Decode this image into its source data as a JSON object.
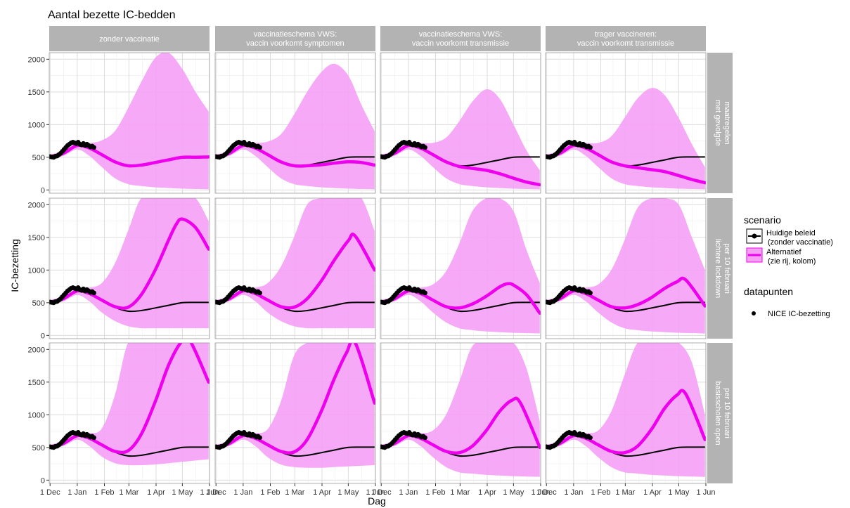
{
  "chart_data": {
    "type": "line",
    "title": "Aantal bezette IC-bedden",
    "xlabel": "Dag",
    "ylabel": "IC-bezetting",
    "x_ticks": [
      "1 Dec",
      "1 Jan",
      "1 Feb",
      "1 Mar",
      "1 Apr",
      "1 May",
      "1 Jun"
    ],
    "y_ticks": [
      "0",
      "500",
      "1000",
      "1500",
      "2000"
    ],
    "ylim": [
      0,
      2100
    ],
    "grid": true,
    "columns": [
      "zonder vaccinatie",
      "vaccinatieschema VWS:\nvaccin voorkomt symptomen",
      "vaccinatieschema VWS:\nvaccin voorkomt transmissie",
      "trager vaccineren:\nvaccin voorkomt transmissie"
    ],
    "rows": [
      "met gevolgde\nmaatregelen",
      "lichtere lockdown\nper 10 februari",
      "basisscholen open\nper 10 februari"
    ],
    "legend": {
      "scenario_title": "scenario",
      "scenario_items": [
        {
          "line1": "Huidige beleid",
          "line2": "(zonder vaccinatie)",
          "color": "#000000"
        },
        {
          "line1": "Alternatief",
          "line2": "(zie rij, kolom)",
          "color": "#ee00ee"
        }
      ],
      "points_title": "datapunten",
      "points_item": "NICE IC-bezetting",
      "placement": "right"
    },
    "colors": {
      "baseline": "#000000",
      "alternative": "#ee00ee",
      "band": "#f5a0f5",
      "strip": "#b3b3b3"
    },
    "baseline_x": [
      1,
      16,
      32,
      46,
      60,
      75,
      90,
      105,
      121,
      136,
      152,
      167,
      182
    ],
    "baseline_y": [
      510,
      560,
      680,
      640,
      540,
      430,
      370,
      380,
      420,
      460,
      500,
      505,
      505
    ],
    "observed": {
      "x": [
        1,
        3,
        5,
        7,
        9,
        11,
        13,
        15,
        17,
        19,
        21,
        23,
        25,
        27,
        29,
        31,
        33,
        35,
        37,
        39,
        41,
        43,
        45,
        47,
        49,
        51
      ],
      "y": [
        510,
        505,
        500,
        515,
        520,
        540,
        560,
        590,
        620,
        650,
        680,
        700,
        720,
        730,
        720,
        710,
        730,
        700,
        690,
        710,
        680,
        700,
        680,
        660,
        670,
        650
      ]
    },
    "panels": [
      {
        "row": 0,
        "col": 0,
        "alt_x": [
          1,
          16,
          32,
          46,
          60,
          75,
          90,
          105,
          121,
          136,
          152,
          167,
          182
        ],
        "alt_y": [
          510,
          560,
          680,
          640,
          540,
          430,
          370,
          380,
          420,
          460,
          500,
          500,
          505
        ],
        "band_x": [
          1,
          16,
          32,
          46,
          60,
          75,
          90,
          105,
          121,
          136,
          152,
          167,
          182
        ],
        "band_lo": [
          480,
          520,
          620,
          520,
          350,
          180,
          90,
          60,
          40,
          30,
          20,
          15,
          10
        ],
        "band_hi": [
          540,
          600,
          720,
          720,
          760,
          900,
          1250,
          1650,
          2020,
          2100,
          1850,
          1500,
          1200
        ]
      },
      {
        "row": 0,
        "col": 1,
        "alt_x": [
          1,
          16,
          32,
          46,
          60,
          75,
          90,
          105,
          121,
          136,
          152,
          167,
          182
        ],
        "alt_y": [
          510,
          560,
          680,
          640,
          540,
          430,
          370,
          370,
          385,
          410,
          430,
          420,
          380
        ],
        "band_x": [
          1,
          16,
          32,
          46,
          60,
          75,
          90,
          105,
          121,
          136,
          152,
          167,
          182
        ],
        "band_lo": [
          480,
          520,
          620,
          520,
          350,
          180,
          90,
          60,
          40,
          30,
          20,
          15,
          10
        ],
        "band_hi": [
          540,
          600,
          720,
          720,
          740,
          850,
          1150,
          1500,
          1800,
          1930,
          1750,
          1300,
          900
        ]
      },
      {
        "row": 0,
        "col": 2,
        "alt_x": [
          1,
          16,
          32,
          46,
          60,
          75,
          90,
          105,
          121,
          136,
          152,
          167,
          182
        ],
        "alt_y": [
          510,
          560,
          680,
          640,
          540,
          430,
          360,
          330,
          300,
          250,
          180,
          120,
          80
        ],
        "band_x": [
          1,
          16,
          32,
          46,
          60,
          75,
          90,
          105,
          121,
          136,
          152,
          167,
          182
        ],
        "band_lo": [
          480,
          520,
          620,
          520,
          350,
          180,
          90,
          60,
          40,
          30,
          20,
          15,
          10
        ],
        "band_hi": [
          540,
          600,
          720,
          720,
          720,
          800,
          1050,
          1350,
          1540,
          1400,
          1000,
          600,
          300
        ]
      },
      {
        "row": 0,
        "col": 3,
        "alt_x": [
          1,
          16,
          32,
          46,
          60,
          75,
          90,
          105,
          121,
          136,
          152,
          167,
          182
        ],
        "alt_y": [
          510,
          560,
          680,
          640,
          540,
          430,
          370,
          340,
          310,
          280,
          220,
          160,
          110
        ],
        "band_x": [
          1,
          16,
          32,
          46,
          60,
          75,
          90,
          105,
          121,
          136,
          152,
          167,
          182
        ],
        "band_lo": [
          480,
          520,
          620,
          520,
          350,
          180,
          90,
          60,
          40,
          30,
          20,
          15,
          10
        ],
        "band_hi": [
          540,
          600,
          720,
          720,
          720,
          820,
          1100,
          1400,
          1560,
          1450,
          1100,
          700,
          350
        ]
      },
      {
        "row": 1,
        "col": 0,
        "alt_x": [
          1,
          16,
          32,
          46,
          60,
          75,
          90,
          105,
          121,
          136,
          145,
          152,
          167,
          182
        ],
        "alt_y": [
          510,
          560,
          680,
          640,
          540,
          440,
          430,
          620,
          1000,
          1450,
          1700,
          1780,
          1650,
          1320
        ],
        "band_x": [
          1,
          16,
          32,
          46,
          60,
          75,
          90,
          105,
          121,
          136,
          152,
          167,
          182
        ],
        "band_lo": [
          480,
          520,
          620,
          520,
          350,
          220,
          140,
          110,
          110,
          110,
          110,
          110,
          110
        ],
        "band_hi": [
          540,
          600,
          720,
          730,
          800,
          1100,
          1600,
          2100,
          2100,
          2100,
          2100,
          2100,
          1750
        ]
      },
      {
        "row": 1,
        "col": 1,
        "alt_x": [
          1,
          16,
          32,
          46,
          60,
          75,
          90,
          105,
          121,
          136,
          152,
          160,
          182
        ],
        "alt_y": [
          510,
          560,
          680,
          640,
          540,
          440,
          430,
          560,
          830,
          1150,
          1450,
          1520,
          1000
        ],
        "band_x": [
          1,
          16,
          32,
          46,
          60,
          75,
          90,
          105,
          121,
          136,
          152,
          167,
          182
        ],
        "band_lo": [
          480,
          520,
          620,
          520,
          350,
          220,
          140,
          110,
          110,
          110,
          110,
          110,
          110
        ],
        "band_hi": [
          540,
          600,
          720,
          730,
          800,
          1050,
          1500,
          2000,
          2100,
          2100,
          2100,
          2100,
          1600
        ]
      },
      {
        "row": 1,
        "col": 2,
        "alt_x": [
          1,
          16,
          32,
          46,
          60,
          75,
          90,
          105,
          121,
          136,
          145,
          152,
          167,
          182
        ],
        "alt_y": [
          510,
          560,
          680,
          640,
          540,
          440,
          420,
          480,
          600,
          740,
          790,
          770,
          620,
          340
        ],
        "band_x": [
          1,
          16,
          32,
          46,
          60,
          75,
          90,
          105,
          121,
          136,
          152,
          167,
          182
        ],
        "band_lo": [
          480,
          520,
          620,
          520,
          350,
          200,
          110,
          80,
          60,
          50,
          40,
          35,
          30
        ],
        "band_hi": [
          540,
          600,
          720,
          730,
          780,
          980,
          1400,
          1900,
          2100,
          2100,
          1900,
          1300,
          800
        ]
      },
      {
        "row": 1,
        "col": 3,
        "alt_x": [
          1,
          16,
          32,
          46,
          60,
          75,
          90,
          105,
          121,
          136,
          150,
          160,
          182
        ],
        "alt_y": [
          510,
          560,
          680,
          640,
          540,
          440,
          420,
          470,
          580,
          720,
          820,
          850,
          450
        ],
        "band_x": [
          1,
          16,
          32,
          46,
          60,
          75,
          90,
          105,
          121,
          136,
          152,
          167,
          182
        ],
        "band_lo": [
          480,
          520,
          620,
          520,
          350,
          200,
          110,
          80,
          60,
          50,
          40,
          35,
          30
        ],
        "band_hi": [
          540,
          600,
          720,
          730,
          780,
          1000,
          1450,
          1950,
          2100,
          2100,
          2000,
          1500,
          1000
        ]
      },
      {
        "row": 2,
        "col": 0,
        "alt_x": [
          1,
          16,
          32,
          46,
          60,
          75,
          90,
          105,
          121,
          136,
          150,
          160,
          182
        ],
        "alt_y": [
          510,
          560,
          680,
          640,
          540,
          440,
          450,
          700,
          1200,
          1750,
          2100,
          2150,
          1500
        ],
        "band_x": [
          1,
          16,
          32,
          46,
          60,
          75,
          90,
          105,
          121,
          136,
          152,
          167,
          182
        ],
        "band_lo": [
          480,
          520,
          620,
          520,
          360,
          260,
          230,
          230,
          240,
          260,
          280,
          300,
          320
        ],
        "band_hi": [
          540,
          600,
          720,
          720,
          790,
          1300,
          2100,
          2100,
          2100,
          2100,
          2100,
          2100,
          2100
        ]
      },
      {
        "row": 2,
        "col": 1,
        "alt_x": [
          1,
          16,
          32,
          46,
          60,
          75,
          90,
          105,
          121,
          136,
          150,
          160,
          182
        ],
        "alt_y": [
          510,
          560,
          680,
          640,
          540,
          440,
          430,
          620,
          1050,
          1550,
          1950,
          2100,
          1180
        ],
        "band_x": [
          1,
          16,
          32,
          46,
          60,
          75,
          90,
          105,
          121,
          136,
          152,
          167,
          182
        ],
        "band_lo": [
          480,
          520,
          620,
          520,
          350,
          240,
          200,
          190,
          190,
          200,
          210,
          220,
          230
        ],
        "band_hi": [
          540,
          600,
          720,
          720,
          780,
          1200,
          1900,
          2100,
          2100,
          2100,
          2100,
          2100,
          2100
        ]
      },
      {
        "row": 2,
        "col": 2,
        "alt_x": [
          1,
          16,
          32,
          46,
          60,
          75,
          90,
          105,
          121,
          136,
          150,
          160,
          182
        ],
        "alt_y": [
          510,
          560,
          680,
          640,
          540,
          440,
          420,
          520,
          760,
          1050,
          1220,
          1180,
          500
        ],
        "band_x": [
          1,
          16,
          32,
          46,
          60,
          75,
          90,
          105,
          121,
          136,
          152,
          167,
          182
        ],
        "band_lo": [
          480,
          520,
          620,
          520,
          350,
          200,
          120,
          100,
          80,
          70,
          60,
          55,
          50
        ],
        "band_hi": [
          540,
          600,
          720,
          720,
          760,
          1000,
          1500,
          2050,
          2100,
          2100,
          2100,
          1700,
          900
        ]
      },
      {
        "row": 2,
        "col": 3,
        "alt_x": [
          1,
          16,
          32,
          46,
          60,
          75,
          90,
          105,
          121,
          136,
          150,
          160,
          182
        ],
        "alt_y": [
          510,
          560,
          680,
          640,
          540,
          440,
          420,
          520,
          780,
          1100,
          1300,
          1320,
          620
        ],
        "band_x": [
          1,
          16,
          32,
          46,
          60,
          75,
          90,
          105,
          121,
          136,
          152,
          167,
          182
        ],
        "band_lo": [
          480,
          520,
          620,
          520,
          350,
          200,
          120,
          100,
          80,
          70,
          60,
          55,
          50
        ],
        "band_hi": [
          540,
          600,
          720,
          720,
          760,
          1050,
          1600,
          2100,
          2100,
          2100,
          2100,
          1800,
          1000
        ]
      }
    ]
  }
}
